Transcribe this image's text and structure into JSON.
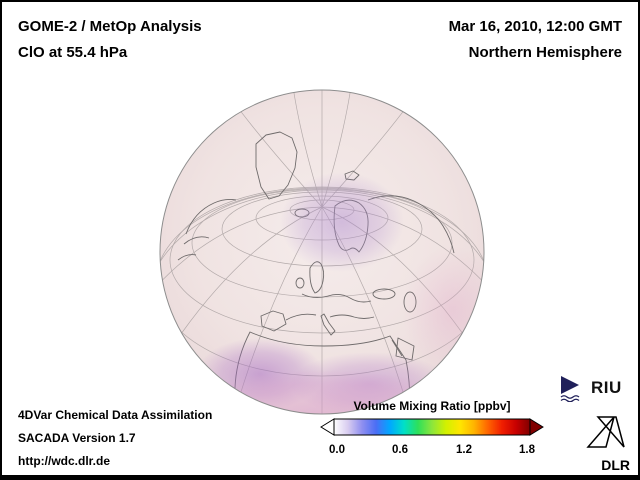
{
  "header": {
    "title_line1": "GOME-2 / MetOp Analysis",
    "title_line2": "ClO at 55.4 hPa",
    "datetime": "Mar 16, 2010, 12:00 GMT",
    "region": "Northern Hemisphere"
  },
  "footer": {
    "line1": "4DVar Chemical Data Assimilation",
    "line2": "SACADA Version 1.7",
    "line3": "http://wdc.dlr.de"
  },
  "colorbar": {
    "title": "Volume Mixing Ratio [ppbv]",
    "ticks": [
      "0.0",
      "0.6",
      "1.2",
      "1.8"
    ],
    "min": 0.0,
    "max": 1.8,
    "colors": [
      "#ffffff",
      "#d8ccf0",
      "#8f8ff0",
      "#4b6ef5",
      "#00a8ff",
      "#00e0c8",
      "#2ee05a",
      "#8ce63c",
      "#d2f000",
      "#ffe600",
      "#ffb400",
      "#ff6400",
      "#f01e00",
      "#c80000",
      "#800000"
    ]
  },
  "logos": {
    "riu_label": "RIU",
    "dlr_label": "DLR"
  }
}
